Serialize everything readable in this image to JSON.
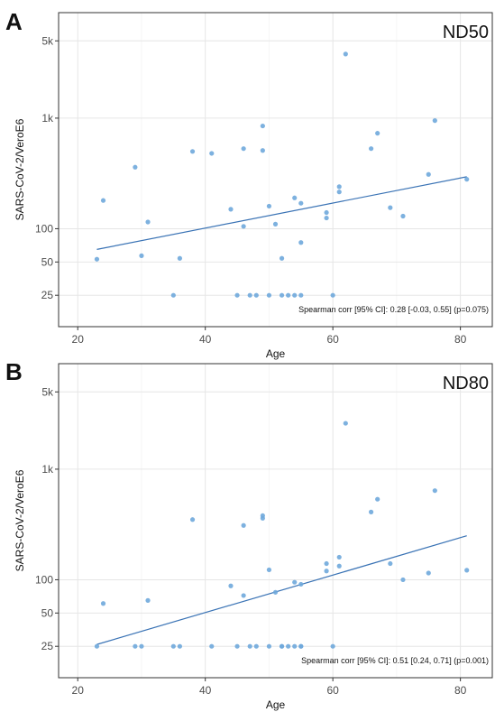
{
  "chart_data": [
    {
      "type": "scatter",
      "panel_label": "A",
      "title": "ND50",
      "xlabel": "Age",
      "ylabel": "SARS-CoV-2/VeroE6",
      "y_scale": "log",
      "xlim": [
        17,
        85
      ],
      "ylim": [
        13,
        9000
      ],
      "x_ticks": [
        20,
        40,
        60,
        80
      ],
      "x_tick_labels": [
        "20",
        "40",
        "60",
        "80"
      ],
      "y_ticks": [
        25,
        50,
        100,
        1000,
        5000
      ],
      "y_tick_labels": [
        "25",
        "50",
        "100",
        "1k",
        "5k"
      ],
      "grid": true,
      "point_color": "#6fa8dc",
      "line_color": "#3a73b5",
      "annotation": "Spearman corr [95% CI]: 0.28 [-0.03, 0.55] (p=0.075)",
      "points": [
        [
          23,
          53
        ],
        [
          24,
          180
        ],
        [
          29,
          360
        ],
        [
          30,
          57
        ],
        [
          31,
          115
        ],
        [
          35,
          25
        ],
        [
          36,
          54
        ],
        [
          38,
          500
        ],
        [
          41,
          480
        ],
        [
          44,
          150
        ],
        [
          45,
          25
        ],
        [
          46,
          530
        ],
        [
          46,
          105
        ],
        [
          47,
          25
        ],
        [
          48,
          25
        ],
        [
          49,
          850
        ],
        [
          49,
          510
        ],
        [
          50,
          160
        ],
        [
          50,
          25
        ],
        [
          51,
          110
        ],
        [
          52,
          54
        ],
        [
          52,
          25
        ],
        [
          53,
          25
        ],
        [
          54,
          190
        ],
        [
          54,
          25
        ],
        [
          55,
          170
        ],
        [
          55,
          75
        ],
        [
          55,
          25
        ],
        [
          59,
          140
        ],
        [
          59,
          125
        ],
        [
          60,
          25
        ],
        [
          61,
          240
        ],
        [
          61,
          215
        ],
        [
          62,
          3800
        ],
        [
          66,
          530
        ],
        [
          67,
          730
        ],
        [
          69,
          155
        ],
        [
          71,
          130
        ],
        [
          75,
          310
        ],
        [
          76,
          950
        ],
        [
          81,
          280
        ]
      ],
      "trend_line": [
        [
          23,
          65
        ],
        [
          81,
          295
        ]
      ]
    },
    {
      "type": "scatter",
      "panel_label": "B",
      "title": "ND80",
      "xlabel": "Age",
      "ylabel": "SARS-CoV-2/VeroE6",
      "y_scale": "log",
      "xlim": [
        17,
        85
      ],
      "ylim": [
        13,
        9000
      ],
      "x_ticks": [
        20,
        40,
        60,
        80
      ],
      "x_tick_labels": [
        "20",
        "40",
        "60",
        "80"
      ],
      "y_ticks": [
        25,
        50,
        100,
        1000,
        5000
      ],
      "y_tick_labels": [
        "25",
        "50",
        "100",
        "1k",
        "5k"
      ],
      "grid": true,
      "point_color": "#6fa8dc",
      "line_color": "#3a73b5",
      "annotation": "Spearman corr [95% CI]: 0.51 [0.24, 0.71] (p=0.001)",
      "points": [
        [
          23,
          25
        ],
        [
          24,
          61
        ],
        [
          29,
          25
        ],
        [
          30,
          25
        ],
        [
          31,
          65
        ],
        [
          35,
          25
        ],
        [
          36,
          25
        ],
        [
          38,
          350
        ],
        [
          41,
          25
        ],
        [
          44,
          88
        ],
        [
          45,
          25
        ],
        [
          46,
          310
        ],
        [
          46,
          72
        ],
        [
          47,
          25
        ],
        [
          48,
          25
        ],
        [
          49,
          380
        ],
        [
          49,
          360
        ],
        [
          50,
          123
        ],
        [
          50,
          25
        ],
        [
          51,
          77
        ],
        [
          52,
          25
        ],
        [
          52,
          25
        ],
        [
          53,
          25
        ],
        [
          54,
          95
        ],
        [
          54,
          25
        ],
        [
          55,
          91
        ],
        [
          55,
          25
        ],
        [
          55,
          25
        ],
        [
          59,
          140
        ],
        [
          59,
          120
        ],
        [
          60,
          25
        ],
        [
          61,
          160
        ],
        [
          61,
          133
        ],
        [
          62,
          2600
        ],
        [
          66,
          410
        ],
        [
          67,
          535
        ],
        [
          69,
          140
        ],
        [
          71,
          100
        ],
        [
          75,
          115
        ],
        [
          76,
          640
        ],
        [
          81,
          122
        ]
      ],
      "trend_line": [
        [
          23,
          26
        ],
        [
          81,
          250
        ]
      ]
    }
  ]
}
